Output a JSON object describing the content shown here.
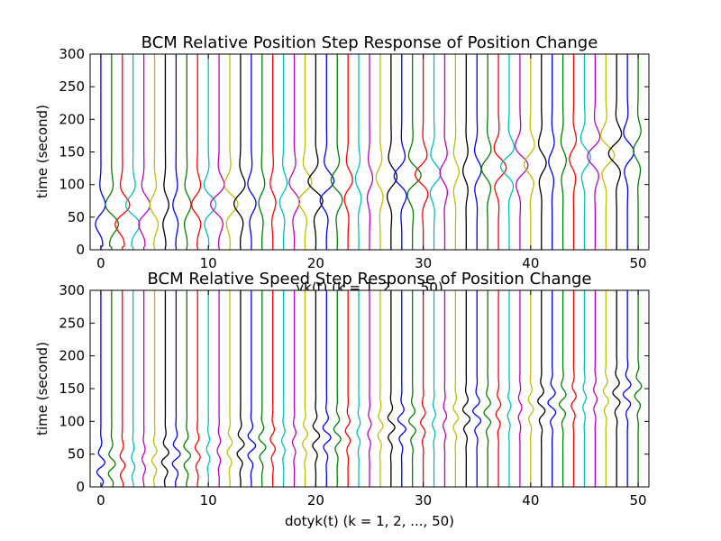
{
  "chart_data": [
    {
      "type": "line",
      "title": "BCM Relative Position Step Response of Position Change",
      "xlabel": "yk(t) (k = 1, 2, ..., 50)",
      "ylabel": "time (second)",
      "xlim": [
        -1,
        51
      ],
      "ylim": [
        0,
        300
      ],
      "xticks": [
        "0",
        "10",
        "20",
        "30",
        "40",
        "50"
      ],
      "yticks": [
        "0",
        "50",
        "100",
        "150",
        "200",
        "250",
        "300"
      ],
      "grid": false,
      "legend": "none",
      "n_series": 51,
      "series_base_positions": [
        0,
        1,
        2,
        3,
        4,
        5,
        6,
        7,
        8,
        9,
        10,
        11,
        12,
        13,
        14,
        15,
        16,
        17,
        18,
        19,
        20,
        21,
        22,
        23,
        24,
        25,
        26,
        27,
        28,
        29,
        30,
        31,
        32,
        33,
        34,
        35,
        36,
        37,
        38,
        39,
        40,
        41,
        42,
        43,
        44,
        45,
        46,
        47,
        48,
        49,
        50
      ],
      "time_samples": [
        0,
        10,
        20,
        30,
        40,
        50,
        60,
        70,
        80,
        90,
        100,
        110,
        120,
        130,
        140,
        150,
        160,
        170,
        180,
        190,
        200,
        210,
        220,
        230,
        240,
        250,
        260,
        270,
        280,
        290,
        300
      ],
      "colors": [
        "#0000ff",
        "#008000",
        "#ff0000",
        "#00bfbf",
        "#bf00bf",
        "#bfbf00",
        "#000000"
      ]
    },
    {
      "type": "line",
      "title": "BCM Relative Speed Step Response of Position Change",
      "xlabel": "dotyk(t) (k = 1, 2, ..., 50)",
      "ylabel": "time (second)",
      "xlim": [
        -1,
        51
      ],
      "ylim": [
        0,
        300
      ],
      "xticks": [
        "0",
        "10",
        "20",
        "30",
        "40",
        "50"
      ],
      "yticks": [
        "0",
        "50",
        "100",
        "150",
        "200",
        "250",
        "300"
      ],
      "grid": false,
      "legend": "none",
      "n_series": 51,
      "series_base_positions": [
        0,
        1,
        2,
        3,
        4,
        5,
        6,
        7,
        8,
        9,
        10,
        11,
        12,
        13,
        14,
        15,
        16,
        17,
        18,
        19,
        20,
        21,
        22,
        23,
        24,
        25,
        26,
        27,
        28,
        29,
        30,
        31,
        32,
        33,
        34,
        35,
        36,
        37,
        38,
        39,
        40,
        41,
        42,
        43,
        44,
        45,
        46,
        47,
        48,
        49,
        50
      ],
      "time_samples": [
        0,
        10,
        20,
        30,
        40,
        50,
        60,
        70,
        80,
        90,
        100,
        110,
        120,
        130,
        140,
        150,
        160,
        170,
        180,
        190,
        200,
        210,
        220,
        230,
        240,
        250,
        260,
        270,
        280,
        290,
        300
      ],
      "colors": [
        "#0000ff",
        "#008000",
        "#ff0000",
        "#00bfbf",
        "#bf00bf",
        "#bfbf00",
        "#000000"
      ]
    }
  ]
}
